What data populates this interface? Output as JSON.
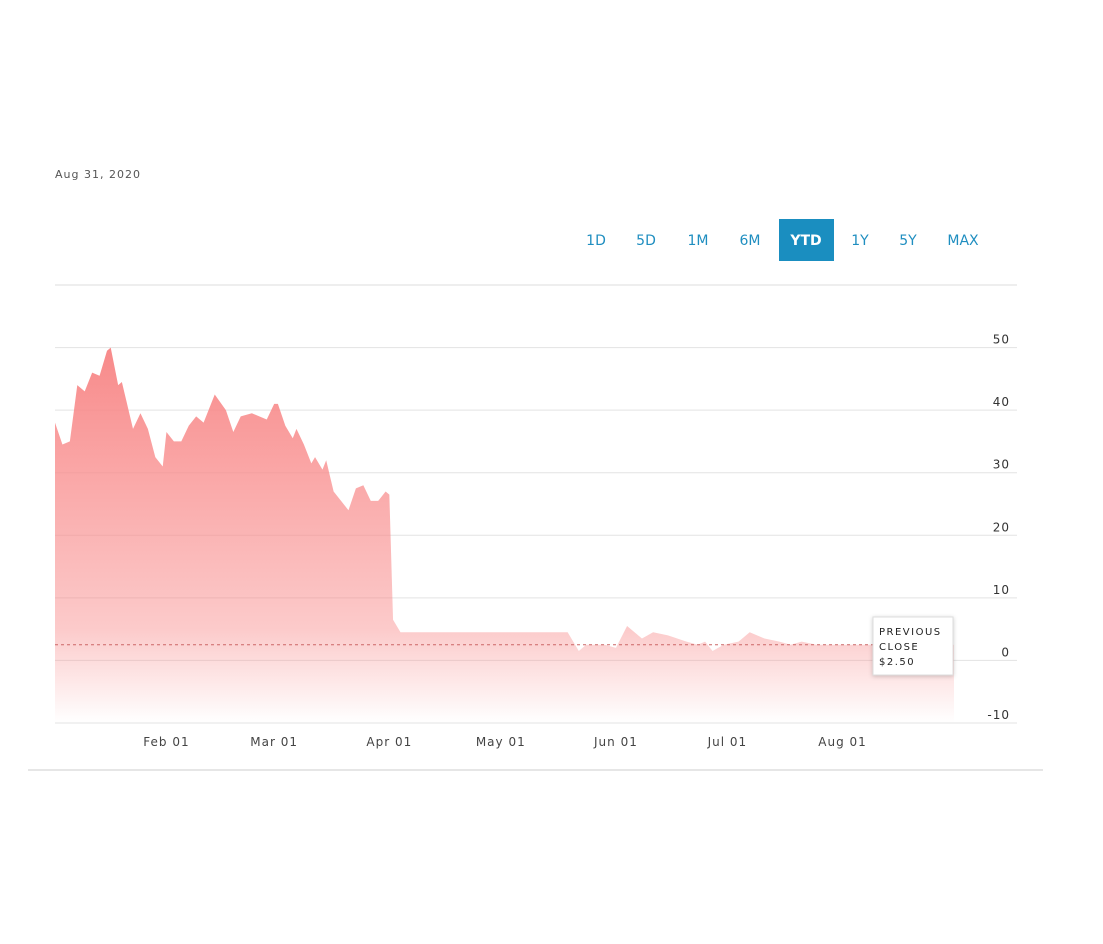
{
  "chart_data": {
    "type": "area",
    "date": "Aug 31, 2020",
    "ranges": [
      "1D",
      "5D",
      "1M",
      "6M",
      "YTD",
      "1Y",
      "5Y",
      "MAX"
    ],
    "active_range": 4,
    "x": [
      2,
      4,
      6,
      8,
      10,
      12,
      14,
      16,
      17,
      19,
      20,
      23,
      25,
      27,
      29,
      31,
      32,
      34,
      36,
      38,
      40,
      42,
      45,
      48,
      50,
      52,
      55,
      57,
      59,
      61,
      62,
      64,
      66,
      67,
      69,
      71,
      72,
      74,
      75,
      77,
      79,
      81,
      83,
      85,
      87,
      89,
      91,
      92,
      93,
      95,
      140,
      143,
      145,
      150,
      153,
      156,
      160,
      163,
      167,
      172,
      175,
      177,
      179,
      182,
      186,
      189,
      193,
      197,
      200,
      203,
      207,
      214,
      220,
      226,
      244
    ],
    "values": [
      38,
      34.5,
      35,
      44,
      43,
      46,
      45.5,
      49.5,
      50,
      44,
      44.5,
      37,
      39.5,
      37,
      32.5,
      31,
      36.5,
      35,
      35,
      37.5,
      39,
      38,
      42.5,
      40,
      36.5,
      39,
      39.5,
      39,
      38.5,
      41,
      41,
      37.5,
      35.5,
      37,
      34.5,
      31.5,
      32.5,
      30.5,
      32,
      27,
      25.5,
      24,
      27.5,
      28,
      25.5,
      25.5,
      27,
      26.5,
      6.5,
      4.5,
      4.5,
      1.5,
      2.5,
      2.5,
      2,
      5.5,
      3.5,
      4.5,
      4,
      3,
      2.5,
      3,
      1.5,
      2.5,
      3,
      4.5,
      3.5,
      3,
      2.5,
      3,
      2.5,
      2.5,
      2.5,
      2.5,
      2.5
    ],
    "color": "#f88a8a",
    "xlim": [
      2,
      244
    ],
    "xticks": [
      {
        "value": 32,
        "label": "Feb 01"
      },
      {
        "value": 61,
        "label": "Mar 01"
      },
      {
        "value": 92,
        "label": "Apr 01"
      },
      {
        "value": 122,
        "label": "May 01"
      },
      {
        "value": 153,
        "label": "Jun 01"
      },
      {
        "value": 183,
        "label": "Jul 01"
      },
      {
        "value": 214,
        "label": "Aug 01"
      }
    ],
    "ylim": [
      -10,
      60
    ],
    "yticks": [
      -10,
      0,
      10,
      20,
      30,
      40,
      50
    ],
    "grid": true,
    "previous_close": {
      "label_lines": [
        "PREVIOUS",
        "CLOSE"
      ],
      "value": 2.5,
      "value_label": "$2.50"
    }
  }
}
